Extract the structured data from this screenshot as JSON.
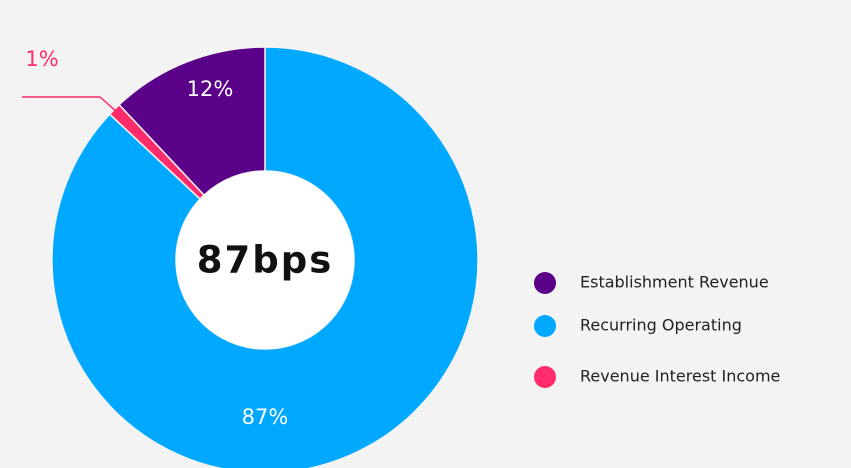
{
  "chart_data": {
    "type": "donut",
    "center_label": "87bps",
    "categories": [
      "Establishment Revenue",
      "Recurring Operating",
      "Revenue Interest Income"
    ],
    "values": [
      12,
      87,
      1
    ],
    "value_labels": [
      "12%",
      "87%",
      "1%"
    ],
    "colors": [
      "#5b0088",
      "#00a9ff",
      "#ff2b6b"
    ],
    "legend": "right"
  }
}
